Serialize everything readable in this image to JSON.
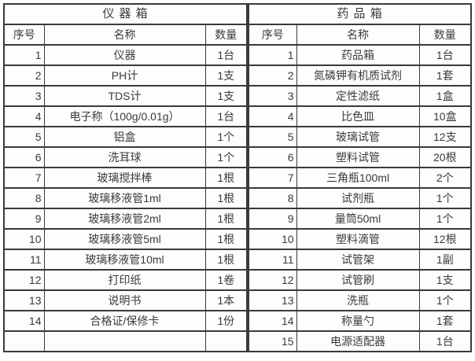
{
  "colors": {
    "border": "#3a3a3a",
    "cell_background": "#fdfdfd",
    "text": "#3a3a3a",
    "page_background": "#ffffff"
  },
  "tables": [
    {
      "title": "仪 器 箱",
      "columns": [
        "序号",
        "名称",
        "数量"
      ],
      "rows": [
        [
          "1",
          "仪器",
          "1台"
        ],
        [
          "2",
          "PH计",
          "1支"
        ],
        [
          "3",
          "TDS计",
          "1支"
        ],
        [
          "4",
          "电子称（100g/0.01g）",
          "1台"
        ],
        [
          "5",
          "铝盒",
          "1个"
        ],
        [
          "6",
          "洗耳球",
          "1个"
        ],
        [
          "7",
          "玻璃搅拌棒",
          "1根"
        ],
        [
          "8",
          "玻璃移液管1ml",
          "1根"
        ],
        [
          "9",
          "玻璃移液管2ml",
          "1根"
        ],
        [
          "10",
          "玻璃移液管5ml",
          "1根"
        ],
        [
          "11",
          "玻璃移液管10ml",
          "1根"
        ],
        [
          "12",
          "打印纸",
          "1卷"
        ],
        [
          "13",
          "说明书",
          "1本"
        ],
        [
          "14",
          "合格证/保修卡",
          "1份"
        ],
        [
          "",
          "",
          ""
        ]
      ]
    },
    {
      "title": "药 品 箱",
      "columns": [
        "序号",
        "名称",
        "数量"
      ],
      "rows": [
        [
          "1",
          "药品箱",
          "1台"
        ],
        [
          "2",
          "氮磷钾有机质试剂",
          "1套"
        ],
        [
          "3",
          "定性滤纸",
          "1盒"
        ],
        [
          "4",
          "比色皿",
          "10盒"
        ],
        [
          "5",
          "玻璃试管",
          "12支"
        ],
        [
          "6",
          "塑料试管",
          "20根"
        ],
        [
          "7",
          "三角瓶100ml",
          "2个"
        ],
        [
          "8",
          "试剂瓶",
          "1个"
        ],
        [
          "9",
          "量筒50ml",
          "1个"
        ],
        [
          "10",
          "塑料滴管",
          "12根"
        ],
        [
          "11",
          "试管架",
          "1副"
        ],
        [
          "12",
          "试管刷",
          "1支"
        ],
        [
          "13",
          "洗瓶",
          "1个"
        ],
        [
          "14",
          "称量勺",
          "1套"
        ],
        [
          "15",
          "电源适配器",
          "1台"
        ]
      ]
    }
  ]
}
